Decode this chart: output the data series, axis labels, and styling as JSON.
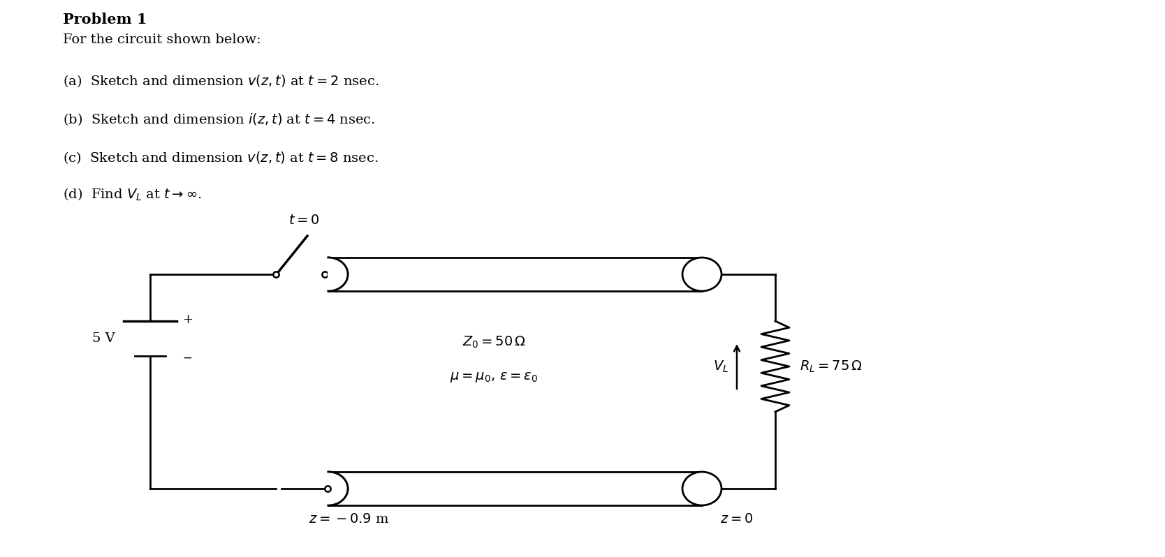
{
  "background_color": "#ffffff",
  "title_text": "Problem 1",
  "subtitle_text": "For the circuit shown below:",
  "items": [
    "(a)\\hspace{4pt} Sketch and dimension $v(z,t)$ at $t = 2$ nsec.",
    "(b)\\hspace{4pt} Sketch and dimension $i(z,t)$ at $t = 4$ nsec.",
    "(c)\\hspace{4pt} Sketch and dimension $v(z,t)$ at $t = 8$ nsec.",
    "(d)\\hspace{4pt} Find $V_L$ at $t \\to \\infty$."
  ],
  "font_size_title": 15,
  "font_size_body": 14,
  "font_size_circuit": 13,
  "circuit": {
    "bat_label": "5 V",
    "switch_label": "$t = 0$",
    "z0_label": "$Z_0 = 50\\,\\Omega$",
    "mu_eps_label": "$\\mu = \\mu_0,\\, \\epsilon = \\epsilon_0$",
    "RL_label": "$R_L = 75\\,\\Omega$",
    "VL_label": "$V_L$",
    "z_left_label": "$z = -0.9$ m",
    "z_right_label": "$z = 0$"
  }
}
